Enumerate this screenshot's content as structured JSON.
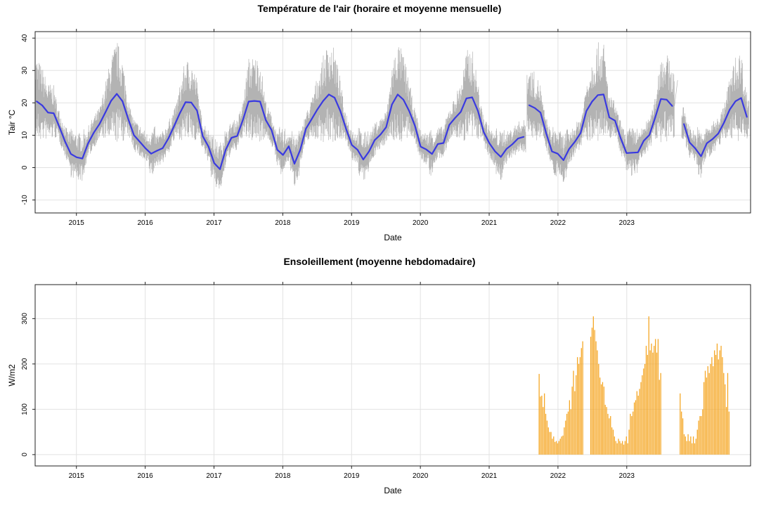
{
  "chart_data": [
    {
      "type": "line",
      "title": "Température de l'air (horaire et moyenne mensuelle)",
      "xlabel": "Date",
      "ylabel": "Tair °C",
      "xlim": [
        2014.4,
        2024.8
      ],
      "ylim": [
        -14,
        42
      ],
      "x_ticks": [
        "2015",
        "2016",
        "2017",
        "2018",
        "2019",
        "2020",
        "2021",
        "2022",
        "2023"
      ],
      "y_ticks": [
        -10,
        0,
        10,
        20,
        30,
        40
      ],
      "colors": {
        "hourly": "#b3b3b3",
        "monthly": "#3a3ae0"
      },
      "series": [
        {
          "name": "Moyenne mensuelle",
          "segments": [
            {
              "start": 2014.42,
              "values": [
                20.5,
                19.2,
                17,
                16.8,
                12.5,
                8,
                4.2,
                3.2,
                2.8,
                7.5,
                10.8,
                13.5,
                17,
                20.6,
                22.8,
                20.5,
                15,
                10,
                8,
                6,
                4.3,
                5.2,
                6,
                9,
                12.8,
                16.8,
                20.2,
                20.1,
                17.6,
                9.7,
                6.5,
                1.4,
                -0.5,
                5.5,
                9.2,
                9.8,
                14.7,
                20.4,
                20.6,
                20.4,
                14.7,
                11.6,
                5.5,
                3.9,
                6.6,
                1.2,
                5.5,
                12,
                15,
                18,
                20.6,
                22.6,
                21.6,
                17.5,
                12,
                7,
                5.5,
                2.5,
                5,
                8.5,
                10.2,
                12.5,
                19.5,
                22.6,
                21,
                17.5,
                13,
                6.5,
                5.6,
                4.2,
                7.3,
                7.6,
                13.2,
                15.3,
                17.2,
                21.4,
                21.7,
                17.5,
                11,
                7.5,
                5,
                3.3,
                5.8,
                7.2,
                9,
                9.5
              ]
            },
            {
              "start": 2021.58,
              "values": [
                19.3,
                18.4,
                17,
                10.5,
                5,
                4.3,
                2.3,
                5.8,
                8,
                10.7,
                17.5,
                20.4,
                22.4,
                22.6,
                15.5,
                14.5,
                9,
                4.5,
                4.6,
                4.7,
                8.3,
                10.1,
                15.5,
                21.2,
                21,
                19
              ]
            },
            {
              "start": 2023.83,
              "values": [
                13.5,
                7.8,
                5.9,
                3.5,
                7.5,
                8.8,
                10.5,
                13.9,
                17.9,
                20.5,
                21.5,
                15.6
              ]
            }
          ]
        }
      ]
    },
    {
      "type": "bar",
      "title": "Ensoleillement (moyenne hebdomadaire)",
      "xlabel": "Date",
      "ylabel": "W/m2",
      "xlim": [
        2014.4,
        2024.8
      ],
      "ylim": [
        -25,
        375
      ],
      "x_ticks": [
        "2015",
        "2016",
        "2017",
        "2018",
        "2019",
        "2020",
        "2021",
        "2022",
        "2023"
      ],
      "y_ticks": [
        0,
        100,
        200,
        300
      ],
      "colors": {
        "bars": "#f5a623"
      },
      "series": [
        {
          "name": "Ensoleillement hebdomadaire",
          "segments": [
            {
              "start": 2021.72,
              "week": 0.0192,
              "values": [
                178,
                128,
                130,
                105,
                135,
                90,
                75,
                60,
                50,
                50,
                35,
                40,
                28,
                30,
                25,
                30,
                35,
                40,
                42,
                60,
                75,
                90,
                95,
                120,
                100,
                150,
                185,
                140,
                175,
                215,
                200,
                215,
                235,
                250
              ]
            },
            {
              "start": 2022.47,
              "week": 0.0192,
              "values": [
                260,
                280,
                305,
                275,
                250,
                230,
                200,
                170,
                155,
                160,
                150,
                110,
                105,
                90,
                80,
                85,
                60,
                55,
                40,
                30,
                25,
                35,
                30,
                25,
                30,
                22,
                30,
                40,
                25,
                55,
                90,
                85,
                95,
                115,
                120,
                140,
                130,
                145,
                160,
                175,
                190,
                200,
                240,
                220,
                305,
                230,
                245,
                225,
                240,
                255,
                225,
                255,
                165,
                180
              ]
            },
            {
              "start": 2023.77,
              "week": 0.0192,
              "values": [
                135,
                95,
                80,
                45,
                40,
                30,
                45,
                30,
                40,
                25,
                40,
                25,
                35,
                55,
                75,
                85,
                85,
                100,
                160,
                185,
                170,
                195,
                180,
                200,
                215,
                195,
                230,
                220,
                245,
                210,
                230,
                240,
                215,
                180,
                155,
                105,
                180,
                95
              ]
            }
          ]
        }
      ]
    }
  ]
}
